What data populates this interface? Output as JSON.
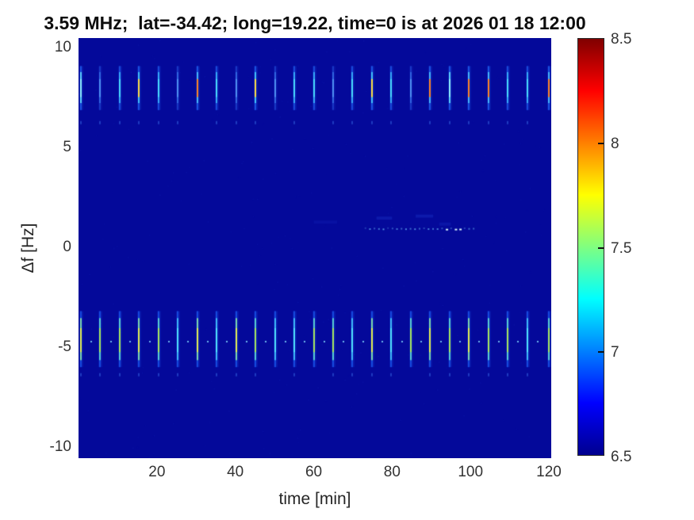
{
  "figure": {
    "title": "3.59 MHz;  lat=-34.42; long=19.22, time=0 is at 2026 01 18 12:00"
  },
  "chart_data": {
    "type": "heatmap",
    "title": "3.59 MHz;  lat=-34.42; long=19.22, time=0 is at 2026 01 18 12:00",
    "xlabel": "time [min]",
    "ylabel": "Δf [Hz]",
    "x_ticks": [
      20,
      40,
      60,
      80,
      100,
      120
    ],
    "y_ticks": [
      -10,
      -5,
      0,
      5,
      10
    ],
    "xlim": [
      0,
      120.6
    ],
    "ylim": [
      -10.5,
      10.5
    ],
    "background_value": 6.5,
    "background_color": "#04099a",
    "colorbar": {
      "ticks": [
        "6.5",
        "7",
        "7.5",
        "8",
        "8.5"
      ],
      "range": [
        6.5,
        8.5
      ],
      "colormap": "jet",
      "stops": [
        [
          "0",
          "#00008f"
        ],
        [
          "0.125",
          "#0000ff"
        ],
        [
          "0.375",
          "#00ffff"
        ],
        [
          "0.5",
          "#80ff80"
        ],
        [
          "0.625",
          "#ffff00"
        ],
        [
          "0.875",
          "#ff0000"
        ],
        [
          "1",
          "#800000"
        ]
      ]
    },
    "palette_upper": {
      "f": {
        "outer": "rgba(40,90,230,0.5)",
        "mid": "rgba(70,140,250,0.55)",
        "core": "rgba(100,175,255,0.6)"
      },
      "c": {
        "outer": "rgba(30,90,235,0.75)",
        "mid": "rgba(60,185,255,0.85)",
        "core": "#49dcff"
      },
      "C": {
        "outer": "rgba(30,95,240,0.8)",
        "mid": "rgba(95,215,255,0.95)",
        "core": "#90f2ff"
      },
      "y": {
        "outer": "rgba(30,95,240,0.8)",
        "mid": "rgba(70,205,255,0.9)",
        "core": "#ffdf45"
      },
      "o": {
        "outer": "rgba(30,95,240,0.8)",
        "mid": "rgba(75,195,255,0.88)",
        "core": "#ff8426"
      }
    },
    "palette_lower": {
      "c": {
        "outer": "rgba(25,85,235,0.8)",
        "mid": "rgba(70,200,255,0.88)",
        "core": "#52e4ff"
      },
      "g": {
        "outer": "rgba(25,85,235,0.8)",
        "mid": "rgba(95,220,210,0.9)",
        "core": "#a8e95e"
      },
      "gy": {
        "outer": "rgba(25,85,235,0.8)",
        "mid": "rgba(135,230,170,0.9)",
        "core": "#e4f052"
      }
    },
    "bands": {
      "upper": {
        "center_hz": 8.0,
        "extent_hz": [
          6.9,
          9.1
        ],
        "mid_hz": [
          7.25,
          8.8
        ],
        "core_hz": [
          7.55,
          8.45
        ],
        "tail_hz": 6.35,
        "events": [
          {
            "t": 0.6,
            "c": "C"
          },
          {
            "t": 5.55,
            "c": "f"
          },
          {
            "t": 10.5,
            "c": "c"
          },
          {
            "t": 15.45,
            "c": "y"
          },
          {
            "t": 20.4,
            "c": "c"
          },
          {
            "t": 25.35,
            "c": "f"
          },
          {
            "t": 30.3,
            "c": "o"
          },
          {
            "t": 35.25,
            "c": "c"
          },
          {
            "t": 40.2,
            "c": "f"
          },
          {
            "t": 45.15,
            "c": "y"
          },
          {
            "t": 50.1,
            "c": "f"
          },
          {
            "t": 55.05,
            "c": "c"
          },
          {
            "t": 60.0,
            "c": "c"
          },
          {
            "t": 64.95,
            "c": "f"
          },
          {
            "t": 69.9,
            "c": "c"
          },
          {
            "t": 74.85,
            "c": "y"
          },
          {
            "t": 79.8,
            "c": "c"
          },
          {
            "t": 84.75,
            "c": "f"
          },
          {
            "t": 89.7,
            "c": "o"
          },
          {
            "t": 94.65,
            "c": "C"
          },
          {
            "t": 99.6,
            "c": "o"
          },
          {
            "t": 104.55,
            "c": "o"
          },
          {
            "t": 109.5,
            "c": "c"
          },
          {
            "t": 114.45,
            "c": "c"
          },
          {
            "t": 120.0,
            "c": "o"
          }
        ]
      },
      "lower": {
        "center_hz": -4.5,
        "extent_hz": [
          -5.95,
          -3.15
        ],
        "mid_hz": [
          -5.6,
          -3.5
        ],
        "core_hz": [
          -5.2,
          -4.0
        ],
        "tail_hz": -6.25,
        "events": [
          {
            "t": 0.6,
            "c": "gy"
          },
          {
            "t": 5.55,
            "c": "g"
          },
          {
            "t": 10.5,
            "c": "g"
          },
          {
            "t": 15.45,
            "c": "gy"
          },
          {
            "t": 20.4,
            "c": "g"
          },
          {
            "t": 25.35,
            "c": "c"
          },
          {
            "t": 30.3,
            "c": "gy"
          },
          {
            "t": 35.25,
            "c": "c"
          },
          {
            "t": 40.2,
            "c": "gy"
          },
          {
            "t": 45.15,
            "c": "g"
          },
          {
            "t": 50.1,
            "c": "c"
          },
          {
            "t": 55.05,
            "c": "c"
          },
          {
            "t": 60.0,
            "c": "g"
          },
          {
            "t": 64.95,
            "c": "g"
          },
          {
            "t": 69.9,
            "c": "c"
          },
          {
            "t": 74.85,
            "c": "gy"
          },
          {
            "t": 79.8,
            "c": "c"
          },
          {
            "t": 84.75,
            "c": "g"
          },
          {
            "t": 89.7,
            "c": "gy"
          },
          {
            "t": 94.65,
            "c": "g"
          },
          {
            "t": 99.6,
            "c": "gy"
          },
          {
            "t": 104.55,
            "c": "g"
          },
          {
            "t": 109.5,
            "c": "g"
          },
          {
            "t": 114.45,
            "c": "c"
          },
          {
            "t": 120.0,
            "c": "g"
          }
        ]
      },
      "gap_dots": {
        "y_hz": -4.62,
        "offset_min": 2.47,
        "color": "rgba(135,225,255,0.8)"
      },
      "dotted_line": {
        "y_hz": 1.0,
        "t_start": 73,
        "t_end": 101,
        "step_min": 1.15,
        "dim_color": "111,196,255",
        "bright_color": "#d9f6ff"
      },
      "smudges": [
        {
          "t0": 60,
          "t1": 66,
          "y_hz": 1.3,
          "alpha": 0.12
        },
        {
          "t0": 76,
          "t1": 80,
          "y_hz": 1.5,
          "alpha": 0.22
        },
        {
          "t0": 86,
          "t1": 90.5,
          "y_hz": 1.6,
          "alpha": 0.22
        },
        {
          "t0": 92,
          "t1": 95,
          "y_hz": 1.2,
          "alpha": 0.18
        }
      ]
    }
  }
}
